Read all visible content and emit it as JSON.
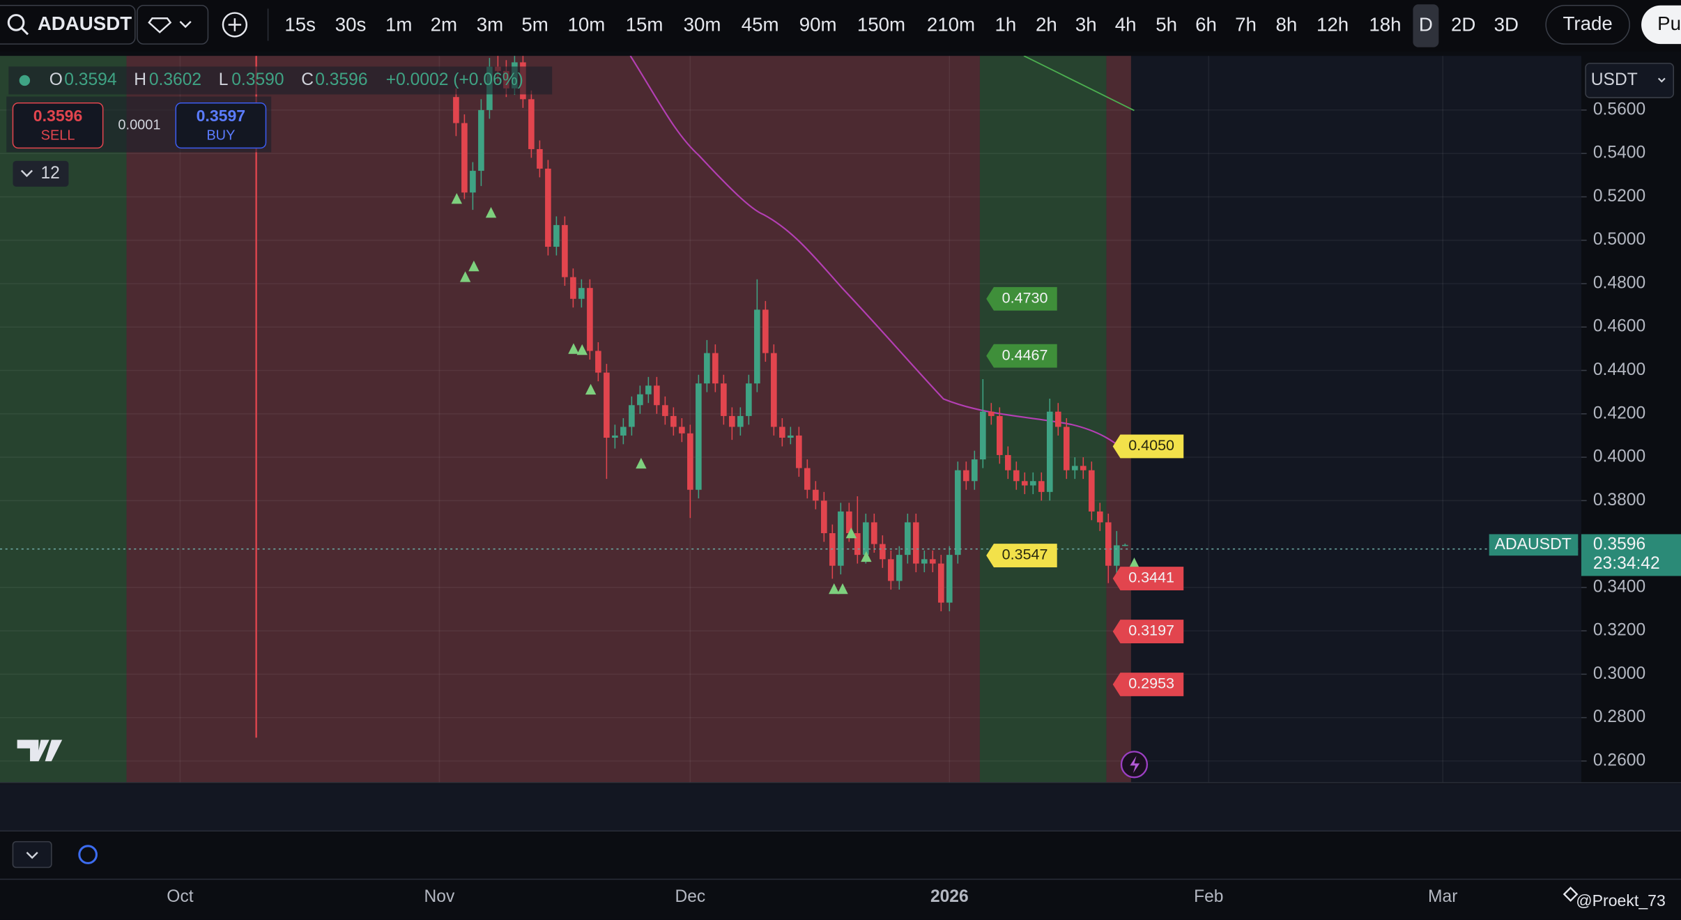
{
  "toolbar": {
    "symbol": "ADAUSDT",
    "intervals": [
      "15s",
      "30s",
      "1m",
      "2m",
      "3m",
      "5m",
      "10m",
      "15m",
      "30m",
      "45m",
      "90m",
      "150m",
      "210m",
      "1h",
      "2h",
      "3h",
      "4h",
      "5h",
      "6h",
      "7h",
      "8h",
      "12h",
      "18h",
      "D",
      "2D",
      "3D"
    ],
    "active_interval": "D",
    "trade": "Trade",
    "publish": "Pu"
  },
  "legend": {
    "o_label": "O",
    "open": "0.3594",
    "h_label": "H",
    "high": "0.3602",
    "l_label": "L",
    "low": "0.3590",
    "c_label": "C",
    "close": "0.3596",
    "change": "+0.0002 (+0.06%)"
  },
  "order_panel": {
    "sell_price": "0.3596",
    "sell": "SELL",
    "spread": "0.0001",
    "buy_price": "0.3597",
    "buy": "BUY"
  },
  "indicators_count": "12",
  "currency": "USDT",
  "watermark": "@Proekt_73",
  "chart": {
    "ylim": [
      0.25,
      0.585
    ],
    "yticks": [
      {
        "value": 0.56,
        "label": "0.5600"
      },
      {
        "value": 0.54,
        "label": "0.5400"
      },
      {
        "value": 0.52,
        "label": "0.5200"
      },
      {
        "value": 0.5,
        "label": "0.5000"
      },
      {
        "value": 0.48,
        "label": "0.4800"
      },
      {
        "value": 0.46,
        "label": "0.4600"
      },
      {
        "value": 0.44,
        "label": "0.4400"
      },
      {
        "value": 0.42,
        "label": "0.4200"
      },
      {
        "value": 0.4,
        "label": "0.4000"
      },
      {
        "value": 0.38,
        "label": "0.3800"
      },
      {
        "value": 0.34,
        "label": "0.3400"
      },
      {
        "value": 0.32,
        "label": "0.3200"
      },
      {
        "value": 0.3,
        "label": "0.3000"
      },
      {
        "value": 0.28,
        "label": "0.2800"
      },
      {
        "value": 0.26,
        "label": "0.2600"
      }
    ],
    "xlim": [
      -21.54,
      167.56
    ],
    "xticks": [
      {
        "value": 0,
        "label": "Oct"
      },
      {
        "value": 31,
        "label": "Nov"
      },
      {
        "value": 61,
        "label": "Dec"
      },
      {
        "value": 92,
        "label": "2026"
      },
      {
        "value": 123,
        "label": "Feb"
      },
      {
        "value": 151,
        "label": "Mar"
      }
    ],
    "x": [
      33,
      34,
      35,
      36,
      37,
      38,
      39,
      40,
      41,
      42,
      43,
      44,
      45,
      46,
      47,
      48,
      49,
      50,
      51,
      52,
      53,
      54,
      55,
      56,
      57,
      58,
      59,
      60,
      61,
      62,
      63,
      64,
      65,
      66,
      67,
      68,
      69,
      70,
      71,
      72,
      73,
      74,
      75,
      76,
      77,
      78,
      79,
      80,
      81,
      82,
      83,
      84,
      85,
      86,
      87,
      88,
      89,
      90,
      91,
      92,
      93,
      94,
      95,
      96,
      97,
      98,
      99,
      100,
      101,
      102,
      103,
      104,
      105,
      106,
      107,
      108,
      109,
      110,
      111,
      112,
      113
    ],
    "candles": [
      [
        0.566,
        0.57,
        0.548,
        0.554
      ],
      [
        0.554,
        0.558,
        0.519,
        0.522
      ],
      [
        0.522,
        0.536,
        0.514,
        0.532
      ],
      [
        0.532,
        0.565,
        0.525,
        0.56
      ],
      [
        0.56,
        0.584,
        0.556,
        0.58
      ],
      [
        0.58,
        0.585,
        0.573,
        0.578
      ],
      [
        0.578,
        0.583,
        0.566,
        0.57
      ],
      [
        0.57,
        0.585,
        0.567,
        0.582
      ],
      [
        0.582,
        0.585,
        0.561,
        0.565
      ],
      [
        0.565,
        0.569,
        0.538,
        0.542
      ],
      [
        0.542,
        0.546,
        0.529,
        0.533
      ],
      [
        0.533,
        0.537,
        0.493,
        0.497
      ],
      [
        0.497,
        0.511,
        0.493,
        0.507
      ],
      [
        0.507,
        0.511,
        0.479,
        0.483
      ],
      [
        0.483,
        0.487,
        0.469,
        0.473
      ],
      [
        0.473,
        0.482,
        0.469,
        0.478
      ],
      [
        0.478,
        0.482,
        0.445,
        0.449
      ],
      [
        0.449,
        0.453,
        0.435,
        0.439
      ],
      [
        0.439,
        0.443,
        0.39,
        0.409
      ],
      [
        0.409,
        0.415,
        0.404,
        0.41
      ],
      [
        0.41,
        0.418,
        0.406,
        0.414
      ],
      [
        0.414,
        0.428,
        0.41,
        0.424
      ],
      [
        0.424,
        0.433,
        0.42,
        0.429
      ],
      [
        0.429,
        0.437,
        0.425,
        0.433
      ],
      [
        0.433,
        0.437,
        0.42,
        0.424
      ],
      [
        0.424,
        0.428,
        0.415,
        0.419
      ],
      [
        0.419,
        0.423,
        0.41,
        0.414
      ],
      [
        0.414,
        0.418,
        0.407,
        0.411
      ],
      [
        0.411,
        0.415,
        0.372,
        0.385
      ],
      [
        0.385,
        0.438,
        0.381,
        0.434
      ],
      [
        0.434,
        0.454,
        0.43,
        0.448
      ],
      [
        0.448,
        0.452,
        0.43,
        0.434
      ],
      [
        0.434,
        0.438,
        0.415,
        0.419
      ],
      [
        0.419,
        0.423,
        0.408,
        0.414
      ],
      [
        0.414,
        0.423,
        0.41,
        0.419
      ],
      [
        0.419,
        0.438,
        0.415,
        0.434
      ],
      [
        0.434,
        0.482,
        0.43,
        0.468
      ],
      [
        0.468,
        0.472,
        0.444,
        0.448
      ],
      [
        0.448,
        0.452,
        0.41,
        0.414
      ],
      [
        0.414,
        0.418,
        0.405,
        0.409
      ],
      [
        0.409,
        0.414,
        0.406,
        0.41
      ],
      [
        0.41,
        0.414,
        0.391,
        0.395
      ],
      [
        0.395,
        0.399,
        0.381,
        0.385
      ],
      [
        0.385,
        0.389,
        0.376,
        0.38
      ],
      [
        0.38,
        0.384,
        0.361,
        0.365
      ],
      [
        0.365,
        0.369,
        0.344,
        0.35
      ],
      [
        0.35,
        0.379,
        0.346,
        0.375
      ],
      [
        0.375,
        0.379,
        0.361,
        0.365
      ],
      [
        0.365,
        0.382,
        0.351,
        0.355
      ],
      [
        0.355,
        0.374,
        0.351,
        0.37
      ],
      [
        0.37,
        0.374,
        0.356,
        0.36
      ],
      [
        0.36,
        0.364,
        0.349,
        0.353
      ],
      [
        0.353,
        0.357,
        0.339,
        0.343
      ],
      [
        0.343,
        0.359,
        0.339,
        0.355
      ],
      [
        0.355,
        0.374,
        0.351,
        0.37
      ],
      [
        0.37,
        0.374,
        0.347,
        0.351
      ],
      [
        0.351,
        0.357,
        0.347,
        0.353
      ],
      [
        0.353,
        0.357,
        0.347,
        0.351
      ],
      [
        0.351,
        0.355,
        0.329,
        0.333
      ],
      [
        0.333,
        0.359,
        0.329,
        0.355
      ],
      [
        0.355,
        0.398,
        0.351,
        0.394
      ],
      [
        0.394,
        0.398,
        0.385,
        0.389
      ],
      [
        0.389,
        0.403,
        0.385,
        0.399
      ],
      [
        0.399,
        0.436,
        0.395,
        0.421
      ],
      [
        0.421,
        0.425,
        0.415,
        0.419
      ],
      [
        0.419,
        0.423,
        0.397,
        0.401
      ],
      [
        0.401,
        0.405,
        0.39,
        0.394
      ],
      [
        0.394,
        0.398,
        0.385,
        0.389
      ],
      [
        0.389,
        0.393,
        0.383,
        0.387
      ],
      [
        0.387,
        0.393,
        0.383,
        0.389
      ],
      [
        0.389,
        0.393,
        0.38,
        0.384
      ],
      [
        0.384,
        0.427,
        0.38,
        0.421
      ],
      [
        0.421,
        0.425,
        0.41,
        0.414
      ],
      [
        0.414,
        0.418,
        0.39,
        0.394
      ],
      [
        0.394,
        0.4,
        0.39,
        0.396
      ],
      [
        0.396,
        0.4,
        0.39,
        0.394
      ],
      [
        0.394,
        0.398,
        0.371,
        0.375
      ],
      [
        0.375,
        0.379,
        0.366,
        0.37
      ],
      [
        0.37,
        0.374,
        0.342,
        0.35
      ],
      [
        0.35,
        0.366,
        0.346,
        0.3594
      ],
      [
        0.3594,
        0.3602,
        0.359,
        0.3596
      ]
    ],
    "up_color": "#3fa384",
    "down_color": "#e2454e",
    "price_tags": [
      {
        "value": 0.473,
        "label": "0.4730",
        "color": "#3f8f3a"
      },
      {
        "value": 0.4467,
        "label": "0.4467",
        "color": "#3f8f3a"
      },
      {
        "value": 0.405,
        "label": "0.4050",
        "color": "#f2e14a"
      },
      {
        "value": 0.3547,
        "label": "0.3547",
        "color": "#f2e14a"
      },
      {
        "value": 0.3441,
        "label": "0.3441",
        "color": "#e2454e"
      },
      {
        "value": 0.3197,
        "label": "0.3197",
        "color": "#e2454e"
      },
      {
        "value": 0.2953,
        "label": "0.2953",
        "color": "#e2454e"
      }
    ],
    "last_price": {
      "symbol": "ADAUSDT",
      "value": 0.3596,
      "label": "0.3596",
      "countdown": "23:34:42"
    }
  }
}
